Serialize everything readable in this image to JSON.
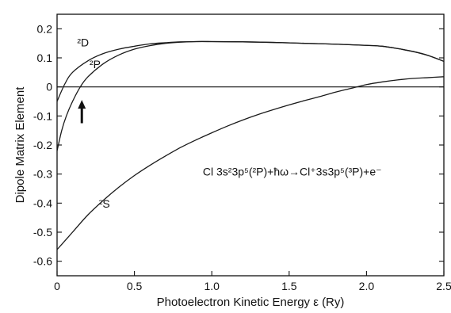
{
  "chart_data": {
    "type": "line",
    "title": "",
    "xlabel": "Photoelectron Kinetic Energy ε (Ry)",
    "ylabel": "Dipole Matrix Element",
    "xlim": [
      0,
      2.5
    ],
    "ylim": [
      -0.65,
      0.25
    ],
    "grid": false,
    "legend": "none",
    "x_ticks": [
      {
        "value": 0,
        "label": "0"
      },
      {
        "value": 0.5,
        "label": "0.5"
      },
      {
        "value": 1.0,
        "label": "1.0"
      },
      {
        "value": 1.5,
        "label": "1.5"
      },
      {
        "value": 2.0,
        "label": "2.0"
      },
      {
        "value": 2.5,
        "label": "2.5"
      }
    ],
    "y_ticks": [
      {
        "value": 0.2,
        "label": "0.2"
      },
      {
        "value": 0.1,
        "label": "0.1"
      },
      {
        "value": 0,
        "label": "0"
      },
      {
        "value": -0.1,
        "label": "-0.1"
      },
      {
        "value": -0.2,
        "label": "-0.2"
      },
      {
        "value": -0.3,
        "label": "-0.3"
      },
      {
        "value": -0.4,
        "label": "-0.4"
      },
      {
        "value": -0.5,
        "label": "-0.5"
      },
      {
        "value": -0.6,
        "label": "-0.6"
      }
    ],
    "series": [
      {
        "name": "²D",
        "label_at": [
          0.13,
          0.14
        ],
        "points": [
          [
            0,
            -0.05
          ],
          [
            0.05,
            0.01
          ],
          [
            0.1,
            0.05
          ],
          [
            0.2,
            0.09
          ],
          [
            0.3,
            0.115
          ],
          [
            0.4,
            0.13
          ],
          [
            0.5,
            0.14
          ],
          [
            0.6,
            0.148
          ],
          [
            0.7,
            0.152
          ],
          [
            0.8,
            0.155
          ],
          [
            0.9,
            0.156
          ],
          [
            1.0,
            0.156
          ],
          [
            1.2,
            0.155
          ],
          [
            1.4,
            0.153
          ],
          [
            1.6,
            0.15
          ],
          [
            1.8,
            0.147
          ],
          [
            2.0,
            0.143
          ],
          [
            2.1,
            0.14
          ],
          [
            2.2,
            0.132
          ],
          [
            2.3,
            0.122
          ],
          [
            2.4,
            0.108
          ],
          [
            2.5,
            0.088
          ]
        ]
      },
      {
        "name": "²P",
        "label_at": [
          0.21,
          0.065
        ],
        "points": [
          [
            0,
            -0.22
          ],
          [
            0.03,
            -0.15
          ],
          [
            0.06,
            -0.1
          ],
          [
            0.1,
            -0.05
          ],
          [
            0.15,
            0.0
          ],
          [
            0.2,
            0.035
          ],
          [
            0.3,
            0.08
          ],
          [
            0.4,
            0.11
          ],
          [
            0.5,
            0.13
          ],
          [
            0.6,
            0.142
          ],
          [
            0.7,
            0.15
          ],
          [
            0.8,
            0.154
          ],
          [
            0.9,
            0.156
          ],
          [
            1.0,
            0.156
          ],
          [
            1.2,
            0.155
          ],
          [
            1.4,
            0.153
          ],
          [
            1.6,
            0.15
          ],
          [
            1.8,
            0.147
          ],
          [
            2.0,
            0.143
          ],
          [
            2.1,
            0.14
          ],
          [
            2.2,
            0.132
          ],
          [
            2.3,
            0.122
          ],
          [
            2.4,
            0.108
          ],
          [
            2.5,
            0.088
          ]
        ]
      },
      {
        "name": "²S",
        "label_at": [
          0.27,
          -0.415
        ],
        "points": [
          [
            0,
            -0.56
          ],
          [
            0.1,
            -0.5
          ],
          [
            0.2,
            -0.44
          ],
          [
            0.3,
            -0.39
          ],
          [
            0.4,
            -0.345
          ],
          [
            0.5,
            -0.305
          ],
          [
            0.6,
            -0.27
          ],
          [
            0.7,
            -0.238
          ],
          [
            0.8,
            -0.208
          ],
          [
            0.9,
            -0.182
          ],
          [
            1.0,
            -0.158
          ],
          [
            1.1,
            -0.135
          ],
          [
            1.2,
            -0.114
          ],
          [
            1.3,
            -0.095
          ],
          [
            1.4,
            -0.078
          ],
          [
            1.5,
            -0.062
          ],
          [
            1.6,
            -0.047
          ],
          [
            1.7,
            -0.033
          ],
          [
            1.8,
            -0.018
          ],
          [
            1.9,
            -0.005
          ],
          [
            2.0,
            0.008
          ],
          [
            2.1,
            0.017
          ],
          [
            2.2,
            0.024
          ],
          [
            2.3,
            0.029
          ],
          [
            2.4,
            0.032
          ],
          [
            2.5,
            0.035
          ]
        ]
      }
    ],
    "marker_arrow": {
      "x": 0.16,
      "y_tip": -0.045,
      "y_tail": -0.125
    },
    "annotation": {
      "text": "Cl 3s²3p⁵(²P)+ħω→Cl⁺3s3p⁵(³P)+e⁻",
      "x": 1.52,
      "y": -0.305
    }
  }
}
